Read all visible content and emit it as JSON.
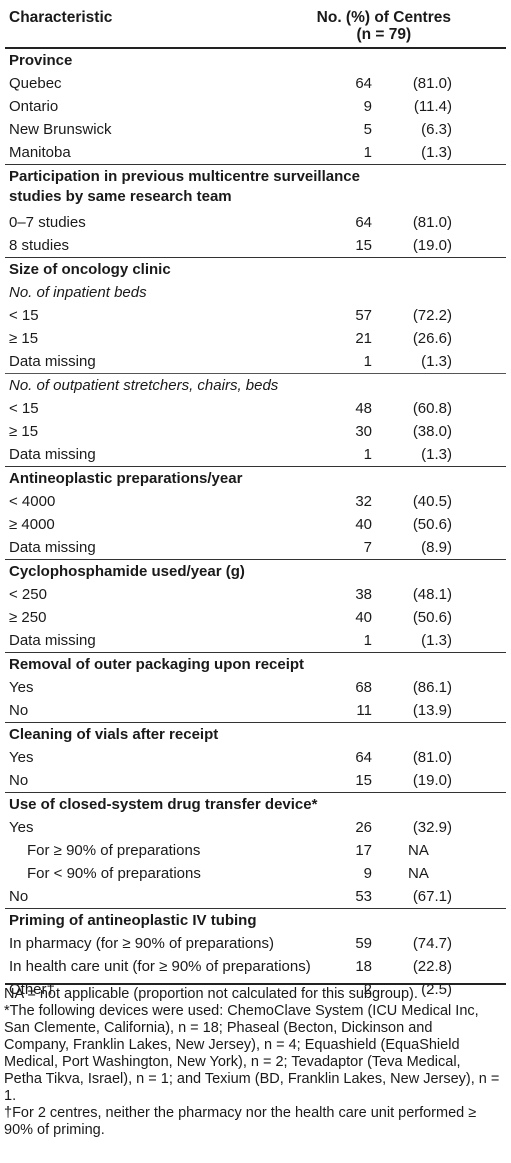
{
  "header": {
    "characteristic": "Characteristic",
    "col_line1": "No. (%) of Centres",
    "col_line2": "(n = 79)"
  },
  "rows": [
    {
      "type": "section",
      "label": "Province"
    },
    {
      "type": "data",
      "label": "Quebec",
      "n": "64",
      "pct": "(81.0)"
    },
    {
      "type": "data",
      "label": "Ontario",
      "n": "9",
      "pct": "(11.4)"
    },
    {
      "type": "data",
      "label": "New Brunswick",
      "n": "5",
      "pct": "(6.3)"
    },
    {
      "type": "data",
      "label": "Manitoba",
      "n": "1",
      "pct": "(1.3)"
    },
    {
      "type": "section2",
      "label": "Participation in previous multicentre surveillance studies by same research team"
    },
    {
      "type": "data",
      "label": "0–7 studies",
      "n": "64",
      "pct": "(81.0)"
    },
    {
      "type": "data",
      "label": "8 studies",
      "n": "15",
      "pct": "(19.0)"
    },
    {
      "type": "section",
      "label": "Size of oncology clinic"
    },
    {
      "type": "sub",
      "label": "No. of inpatient beds"
    },
    {
      "type": "data",
      "label": "< 15",
      "n": "57",
      "pct": "(72.2)"
    },
    {
      "type": "data",
      "label": "≥ 15",
      "n": "21",
      "pct": "(26.6)"
    },
    {
      "type": "data",
      "label": "Data missing",
      "n": "1",
      "pct": "(1.3)"
    },
    {
      "type": "subsep",
      "label": "No. of outpatient stretchers, chairs, beds"
    },
    {
      "type": "data",
      "label": "< 15",
      "n": "48",
      "pct": "(60.8)"
    },
    {
      "type": "data",
      "label": "≥ 15",
      "n": "30",
      "pct": "(38.0)"
    },
    {
      "type": "data",
      "label": "Data missing",
      "n": "1",
      "pct": "(1.3)"
    },
    {
      "type": "section",
      "label": "Antineoplastic preparations/year"
    },
    {
      "type": "data",
      "label": "< 4000",
      "n": "32",
      "pct": "(40.5)"
    },
    {
      "type": "data",
      "label": "≥ 4000",
      "n": "40",
      "pct": "(50.6)"
    },
    {
      "type": "data",
      "label": "Data missing",
      "n": "7",
      "pct": "(8.9)"
    },
    {
      "type": "section",
      "label": "Cyclophosphamide used/year (g)"
    },
    {
      "type": "data",
      "label": "< 250",
      "n": "38",
      "pct": "(48.1)"
    },
    {
      "type": "data",
      "label": "≥ 250",
      "n": "40",
      "pct": "(50.6)"
    },
    {
      "type": "data",
      "label": "Data missing",
      "n": "1",
      "pct": "(1.3)"
    },
    {
      "type": "section",
      "label": "Removal of outer packaging upon receipt"
    },
    {
      "type": "data",
      "label": "Yes",
      "n": "68",
      "pct": "(86.1)"
    },
    {
      "type": "data",
      "label": "No",
      "n": "11",
      "pct": "(13.9)"
    },
    {
      "type": "section",
      "label": "Cleaning of vials after receipt"
    },
    {
      "type": "data",
      "label": "Yes",
      "n": "64",
      "pct": "(81.0)"
    },
    {
      "type": "data",
      "label": "No",
      "n": "15",
      "pct": "(19.0)"
    },
    {
      "type": "section",
      "label": "Use of closed-system drug transfer device*"
    },
    {
      "type": "data",
      "label": "Yes",
      "n": "26",
      "pct": "(32.9)"
    },
    {
      "type": "ind",
      "label": "For ≥ 90% of preparations",
      "n": "17",
      "na": "NA"
    },
    {
      "type": "ind",
      "label": "For < 90% of preparations",
      "n": "9",
      "na": "NA"
    },
    {
      "type": "data",
      "label": "No",
      "n": "53",
      "pct": "(67.1)"
    },
    {
      "type": "section",
      "label": "Priming of antineoplastic IV tubing"
    },
    {
      "type": "data",
      "label": "In pharmacy (for ≥ 90% of preparations)",
      "n": "59",
      "pct": "(74.7)"
    },
    {
      "type": "data",
      "label": "In health care unit (for ≥ 90% of preparations)",
      "n": "18",
      "pct": "(22.8)"
    },
    {
      "type": "data",
      "label": "Other†",
      "n": "2",
      "pct": "(2.5)"
    }
  ],
  "footnotes": {
    "na": "NA = not applicable (proportion not calculated for this subgroup).",
    "star": "*The following devices were used: ChemoClave System (ICU Medical Inc, San Clemente, California), n = 18; Phaseal (Becton, Dickinson and Company, Franklin Lakes, New Jersey), n = 4; Equashield (EquaShield Medical, Port Washington, New York), n = 2; Tevadaptor (Teva Medical, Petha Tikva, Israel), n = 1; and Texium (BD, Franklin Lakes, New Jersey), n = 1.",
    "dagger": "†For 2 centres, neither the pharmacy nor the health care unit performed ≥ 90% of priming."
  }
}
